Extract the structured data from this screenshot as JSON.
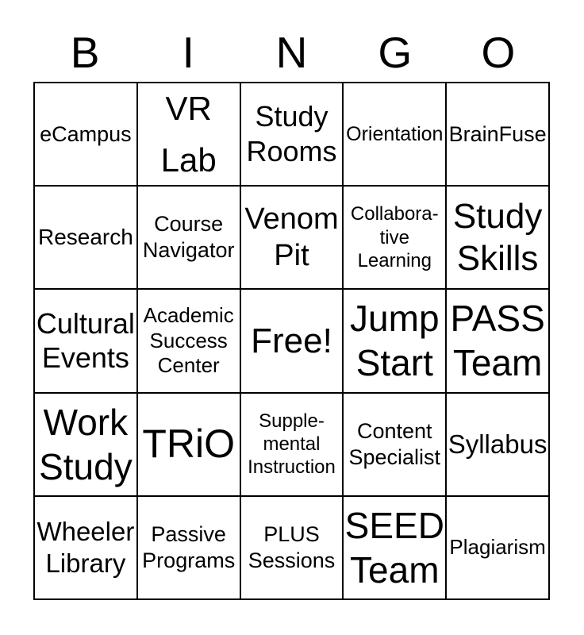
{
  "title": {
    "letters": [
      "B",
      "I",
      "N",
      "G",
      "O"
    ]
  },
  "cells": [
    {
      "id": "ecampus",
      "text": "eCampus"
    },
    {
      "id": "vr-lab",
      "text": "VR\nLab"
    },
    {
      "id": "study-rooms",
      "text": "Study\nRooms"
    },
    {
      "id": "orientation",
      "text": "Orientation"
    },
    {
      "id": "brainfuse",
      "text": "BrainFuse"
    },
    {
      "id": "research",
      "text": "Research"
    },
    {
      "id": "course-navigator",
      "text": "Course\nNavigator"
    },
    {
      "id": "venom-pit",
      "text": "Venom\nPit"
    },
    {
      "id": "collaborative-learning",
      "text": "Collabora-\ntive\nLearning"
    },
    {
      "id": "study-skills",
      "text": "Study\nSkills"
    },
    {
      "id": "cultural-events",
      "text": "Cultural\nEvents"
    },
    {
      "id": "academic-success-center",
      "text": "Academic\nSuccess\nCenter"
    },
    {
      "id": "free-space",
      "text": "Free!"
    },
    {
      "id": "jump-start",
      "text": "Jump\nStart"
    },
    {
      "id": "pass-team",
      "text": "PASS\nTeam"
    },
    {
      "id": "work-study",
      "text": "Work\nStudy"
    },
    {
      "id": "trio",
      "text": "TRiO"
    },
    {
      "id": "supplemental-instruction",
      "text": "Supple-\nmental\nInstruction"
    },
    {
      "id": "content-specialist",
      "text": "Content\nSpecialist"
    },
    {
      "id": "syllabus",
      "text": "Syllabus"
    },
    {
      "id": "wheeler-library",
      "text": "Wheeler\nLibrary"
    },
    {
      "id": "passive-programs",
      "text": "Passive\nPrograms"
    },
    {
      "id": "plus-sessions",
      "text": "PLUS\nSessions"
    },
    {
      "id": "seed-team",
      "text": "SEED\nTeam"
    },
    {
      "id": "plagiarism",
      "text": "Plagiarism"
    }
  ],
  "colors": {
    "text": "#000000",
    "border": "#000000",
    "background": "#ffffff"
  }
}
